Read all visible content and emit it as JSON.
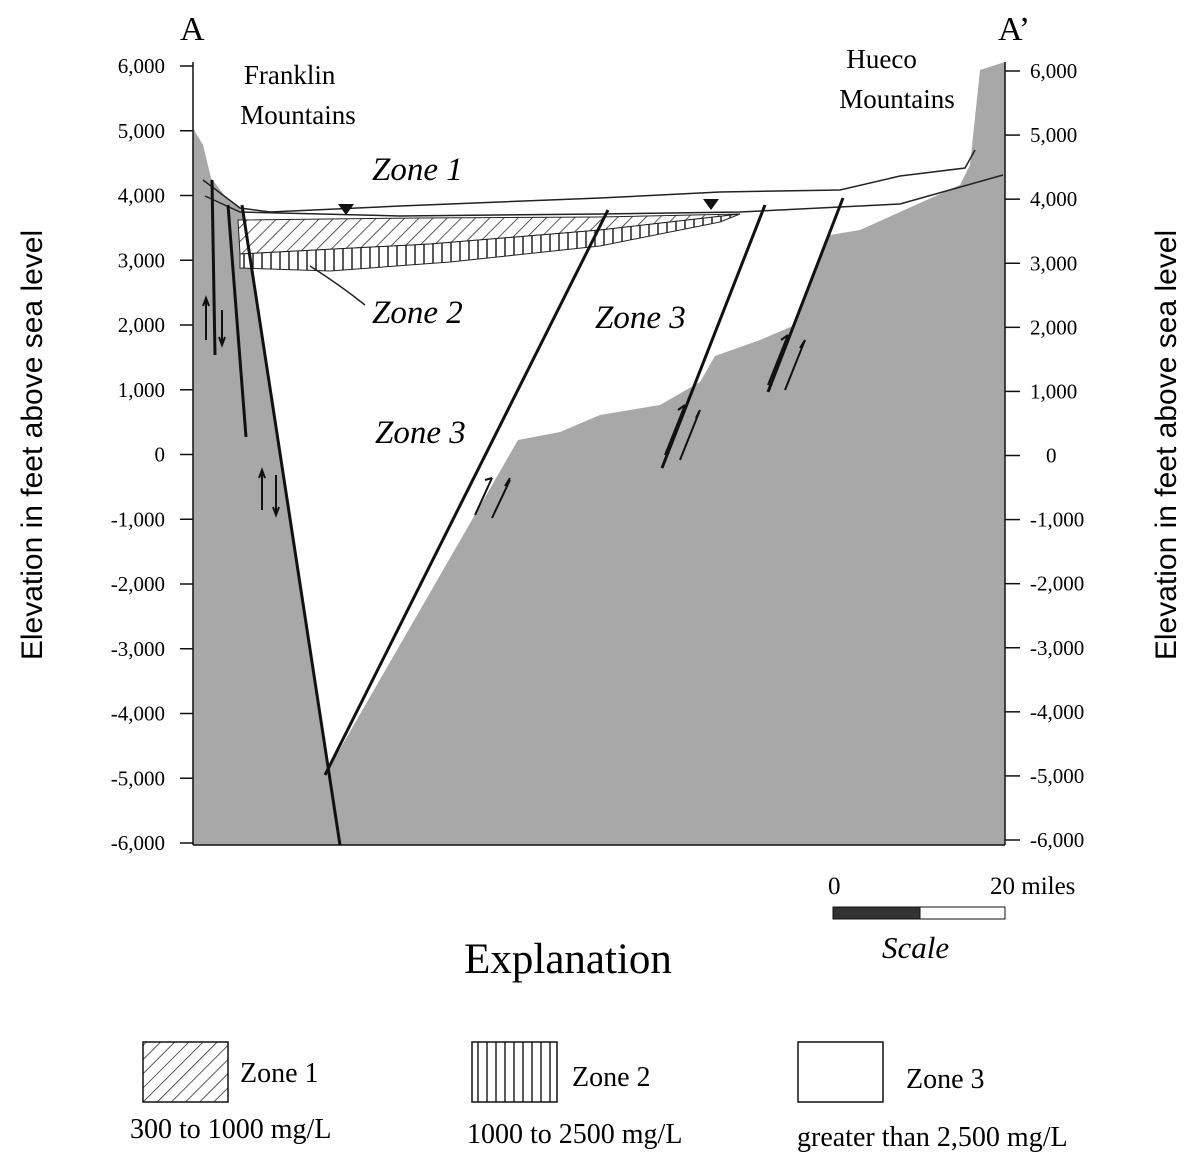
{
  "section": {
    "start_label": "A",
    "end_label": "A’"
  },
  "places": [
    {
      "lines": [
        "Franklin",
        "Mountains"
      ]
    },
    {
      "lines": [
        "Hueco",
        "Mountains"
      ]
    }
  ],
  "axis": {
    "title": "Elevation in feet above sea level",
    "ticks": [
      "6,000",
      "5,000",
      "4,000",
      "3,000",
      "2,000",
      "1,000",
      "0",
      "-1,000",
      "-2,000",
      "-3,000",
      "-4,000",
      "-5,000",
      "-6,000"
    ]
  },
  "zone_labels": [
    "Zone 1",
    "Zone 2",
    "Zone 3",
    "Zone 3"
  ],
  "scale": {
    "start": "0",
    "end": "20 miles",
    "caption": "Scale"
  },
  "explanation": {
    "title": "Explanation",
    "items": [
      {
        "name": "Zone 1",
        "range": "300 to 1000 mg/L"
      },
      {
        "name": "Zone 2",
        "range": "1000 to 2500 mg/L"
      },
      {
        "name": "Zone 3",
        "range": "greater than 2,500 mg/L"
      }
    ]
  }
}
